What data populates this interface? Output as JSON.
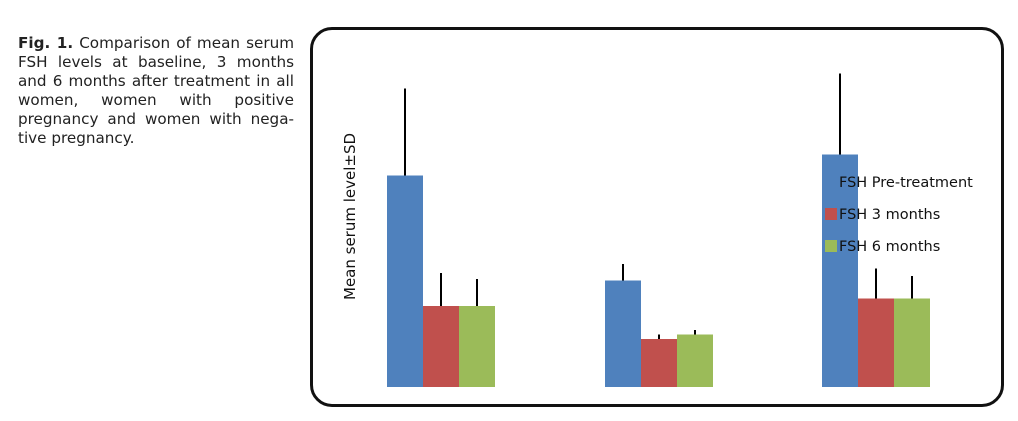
{
  "caption": {
    "fig_label": "Fig. 1.",
    "text": "Comparison of mean serum FSH levels at baseline, 3 months and 6 months after treatment in all women, women with positive pregnancy and women with nega-tive pregnancy."
  },
  "chart_data": {
    "type": "bar",
    "title": "",
    "xlabel": "",
    "ylabel": "Mean serum level±SD",
    "categories": [
      "",
      "",
      ""
    ],
    "ylim": [
      0,
      100
    ],
    "grid": false,
    "legend_position": "right",
    "series": [
      {
        "name": "FSH Pre-treatment",
        "color": "#4f81bd",
        "values": [
          70.5,
          35.5,
          77.5
        ],
        "sd": [
          29,
          5.5,
          27
        ]
      },
      {
        "name": "FSH 3 months",
        "color": "#c0504d",
        "values": [
          27,
          16,
          29.5
        ],
        "sd": [
          11,
          1.5,
          10
        ]
      },
      {
        "name": "FSH 6 months",
        "color": "#9bbb59",
        "values": [
          27,
          17.5,
          29.5
        ],
        "sd": [
          9,
          1.5,
          7.5
        ]
      }
    ]
  }
}
